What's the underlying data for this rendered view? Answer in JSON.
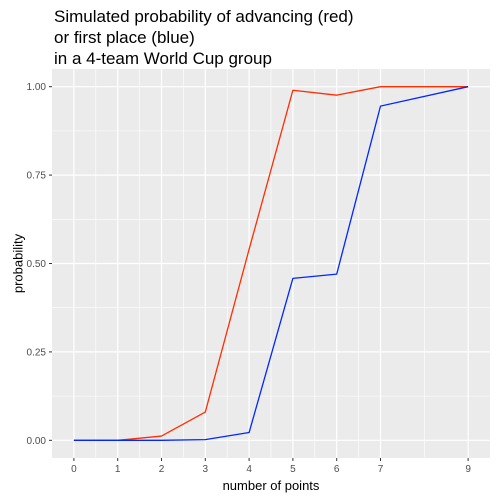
{
  "chart_data": {
    "type": "line",
    "title_lines": [
      "Simulated probability of advancing (red)",
      "or first place (blue)",
      "in a 4-team World Cup group"
    ],
    "xlabel": "number of points",
    "ylabel": "probability",
    "x": [
      0,
      1,
      2,
      3,
      4,
      5,
      6,
      7,
      9
    ],
    "x_ticks": [
      0,
      1,
      2,
      3,
      4,
      5,
      6,
      7,
      9
    ],
    "y_ticks": [
      0,
      0.25,
      0.5,
      0.75,
      1
    ],
    "y_tick_labels": [
      "0.00",
      "0.25",
      "0.50",
      "0.75",
      "1.00"
    ],
    "xlim": [
      -0.5,
      9.5
    ],
    "ylim": [
      -0.05,
      1.05
    ],
    "grid": true,
    "series": [
      {
        "color": "#ff2d00",
        "values": [
          0,
          0,
          0.012,
          0.08,
          0.54,
          0.99,
          0.976,
          1.0,
          1.0
        ]
      },
      {
        "color": "#0027ff",
        "values": [
          0,
          0,
          0,
          0.002,
          0.022,
          0.458,
          0.47,
          0.945,
          1.0
        ]
      }
    ],
    "panel_background": "#ebebeb",
    "grid_color": "#ffffff"
  }
}
